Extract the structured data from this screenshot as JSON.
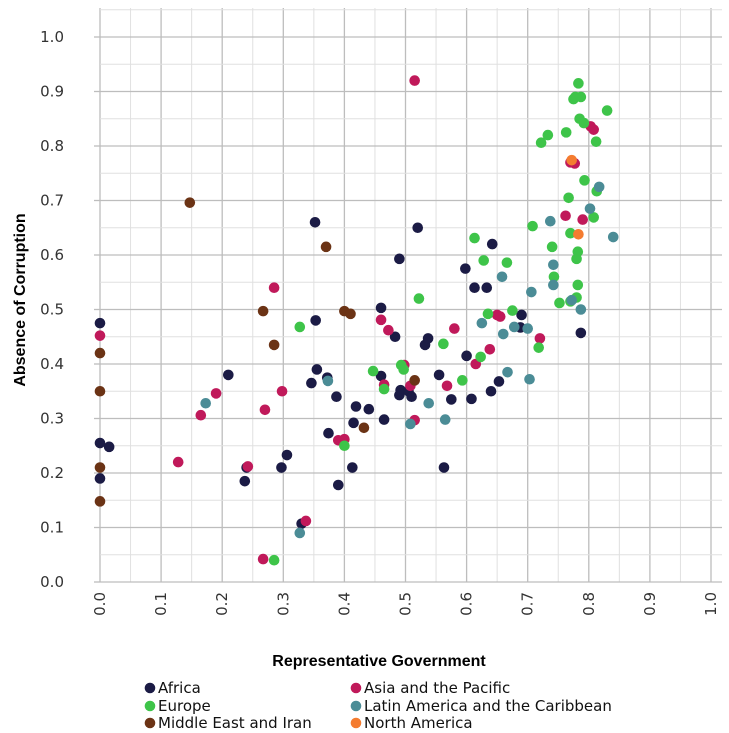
{
  "chart_data": {
    "type": "scatter",
    "xlabel": "Representative Government",
    "ylabel": "Absence of Corruption",
    "xlim": [
      0.0,
      1.0
    ],
    "ylim": [
      0.0,
      1.0
    ],
    "x_ticks": [
      "0.0",
      "0.1",
      "0.2",
      "0.3",
      "0.4",
      "0.5",
      "0.6",
      "0.7",
      "0.8",
      "0.9",
      "1.0"
    ],
    "y_ticks": [
      "0.0",
      "0.1",
      "0.2",
      "0.3",
      "0.4",
      "0.5",
      "0.6",
      "0.7",
      "0.8",
      "0.9",
      "1.0"
    ],
    "grid": true,
    "legend_position": "bottom",
    "series": [
      {
        "name": "Africa",
        "color": "#1b1b45",
        "points": [
          [
            0.0,
            0.475
          ],
          [
            0.0,
            0.255
          ],
          [
            0.0,
            0.19
          ],
          [
            0.015,
            0.248
          ],
          [
            0.21,
            0.38
          ],
          [
            0.237,
            0.185
          ],
          [
            0.24,
            0.21
          ],
          [
            0.297,
            0.21
          ],
          [
            0.306,
            0.233
          ],
          [
            0.33,
            0.107
          ],
          [
            0.346,
            0.365
          ],
          [
            0.352,
            0.66
          ],
          [
            0.353,
            0.48
          ],
          [
            0.355,
            0.39
          ],
          [
            0.372,
            0.375
          ],
          [
            0.374,
            0.273
          ],
          [
            0.387,
            0.34
          ],
          [
            0.39,
            0.178
          ],
          [
            0.413,
            0.21
          ],
          [
            0.415,
            0.292
          ],
          [
            0.419,
            0.322
          ],
          [
            0.44,
            0.317
          ],
          [
            0.46,
            0.503
          ],
          [
            0.46,
            0.378
          ],
          [
            0.465,
            0.298
          ],
          [
            0.483,
            0.45
          ],
          [
            0.49,
            0.593
          ],
          [
            0.49,
            0.343
          ],
          [
            0.492,
            0.352
          ],
          [
            0.505,
            0.35
          ],
          [
            0.51,
            0.34
          ],
          [
            0.52,
            0.65
          ],
          [
            0.532,
            0.435
          ],
          [
            0.537,
            0.447
          ],
          [
            0.555,
            0.38
          ],
          [
            0.563,
            0.21
          ],
          [
            0.575,
            0.335
          ],
          [
            0.598,
            0.575
          ],
          [
            0.6,
            0.415
          ],
          [
            0.608,
            0.336
          ],
          [
            0.613,
            0.54
          ],
          [
            0.633,
            0.54
          ],
          [
            0.64,
            0.35
          ],
          [
            0.642,
            0.62
          ],
          [
            0.653,
            0.368
          ],
          [
            0.688,
            0.467
          ],
          [
            0.69,
            0.49
          ],
          [
            0.787,
            0.457
          ]
        ]
      },
      {
        "name": "Asia and the Pacific",
        "color": "#c0195a",
        "points": [
          [
            0.0,
            0.452
          ],
          [
            0.128,
            0.22
          ],
          [
            0.165,
            0.306
          ],
          [
            0.19,
            0.346
          ],
          [
            0.242,
            0.212
          ],
          [
            0.267,
            0.042
          ],
          [
            0.27,
            0.316
          ],
          [
            0.285,
            0.54
          ],
          [
            0.298,
            0.35
          ],
          [
            0.337,
            0.112
          ],
          [
            0.39,
            0.26
          ],
          [
            0.4,
            0.262
          ],
          [
            0.46,
            0.481
          ],
          [
            0.465,
            0.362
          ],
          [
            0.472,
            0.462
          ],
          [
            0.498,
            0.398
          ],
          [
            0.508,
            0.36
          ],
          [
            0.515,
            0.92
          ],
          [
            0.515,
            0.297
          ],
          [
            0.568,
            0.36
          ],
          [
            0.58,
            0.465
          ],
          [
            0.615,
            0.4
          ],
          [
            0.638,
            0.427
          ],
          [
            0.65,
            0.49
          ],
          [
            0.655,
            0.487
          ],
          [
            0.72,
            0.447
          ],
          [
            0.762,
            0.672
          ],
          [
            0.77,
            0.77
          ],
          [
            0.777,
            0.768
          ],
          [
            0.79,
            0.665
          ],
          [
            0.803,
            0.836
          ],
          [
            0.808,
            0.83
          ]
        ]
      },
      {
        "name": "Europe",
        "color": "#3ec449",
        "points": [
          [
            0.285,
            0.04
          ],
          [
            0.327,
            0.468
          ],
          [
            0.4,
            0.25
          ],
          [
            0.447,
            0.387
          ],
          [
            0.465,
            0.354
          ],
          [
            0.493,
            0.398
          ],
          [
            0.497,
            0.39
          ],
          [
            0.522,
            0.52
          ],
          [
            0.562,
            0.437
          ],
          [
            0.593,
            0.37
          ],
          [
            0.613,
            0.631
          ],
          [
            0.623,
            0.413
          ],
          [
            0.628,
            0.59
          ],
          [
            0.635,
            0.492
          ],
          [
            0.666,
            0.586
          ],
          [
            0.675,
            0.498
          ],
          [
            0.708,
            0.653
          ],
          [
            0.718,
            0.43
          ],
          [
            0.722,
            0.806
          ],
          [
            0.733,
            0.82
          ],
          [
            0.74,
            0.615
          ],
          [
            0.743,
            0.56
          ],
          [
            0.752,
            0.512
          ],
          [
            0.763,
            0.825
          ],
          [
            0.767,
            0.705
          ],
          [
            0.77,
            0.515
          ],
          [
            0.77,
            0.64
          ],
          [
            0.775,
            0.886
          ],
          [
            0.778,
            0.89
          ],
          [
            0.78,
            0.522
          ],
          [
            0.78,
            0.593
          ],
          [
            0.782,
            0.545
          ],
          [
            0.782,
            0.606
          ],
          [
            0.783,
            0.915
          ],
          [
            0.785,
            0.85
          ],
          [
            0.787,
            0.89
          ],
          [
            0.792,
            0.842
          ],
          [
            0.793,
            0.737
          ],
          [
            0.808,
            0.669
          ],
          [
            0.812,
            0.808
          ],
          [
            0.813,
            0.717
          ],
          [
            0.83,
            0.865
          ]
        ]
      },
      {
        "name": "Latin America and the Caribbean",
        "color": "#4b8c96",
        "points": [
          [
            0.173,
            0.328
          ],
          [
            0.327,
            0.09
          ],
          [
            0.373,
            0.369
          ],
          [
            0.508,
            0.29
          ],
          [
            0.538,
            0.328
          ],
          [
            0.565,
            0.298
          ],
          [
            0.625,
            0.475
          ],
          [
            0.658,
            0.56
          ],
          [
            0.66,
            0.455
          ],
          [
            0.667,
            0.385
          ],
          [
            0.678,
            0.468
          ],
          [
            0.7,
            0.465
          ],
          [
            0.703,
            0.372
          ],
          [
            0.706,
            0.532
          ],
          [
            0.737,
            0.662
          ],
          [
            0.742,
            0.545
          ],
          [
            0.742,
            0.582
          ],
          [
            0.772,
            0.517
          ],
          [
            0.787,
            0.5
          ],
          [
            0.802,
            0.685
          ],
          [
            0.817,
            0.725
          ],
          [
            0.84,
            0.633
          ]
        ]
      },
      {
        "name": "Middle East and Iran",
        "color": "#6b3315",
        "points": [
          [
            0.0,
            0.42
          ],
          [
            0.0,
            0.35
          ],
          [
            0.0,
            0.21
          ],
          [
            0.0,
            0.148
          ],
          [
            0.147,
            0.696
          ],
          [
            0.267,
            0.497
          ],
          [
            0.285,
            0.435
          ],
          [
            0.37,
            0.615
          ],
          [
            0.4,
            0.497
          ],
          [
            0.41,
            0.492
          ],
          [
            0.432,
            0.283
          ],
          [
            0.515,
            0.37
          ]
        ]
      },
      {
        "name": "North America",
        "color": "#f47c30",
        "points": [
          [
            0.772,
            0.774
          ],
          [
            0.783,
            0.638
          ]
        ]
      }
    ]
  }
}
